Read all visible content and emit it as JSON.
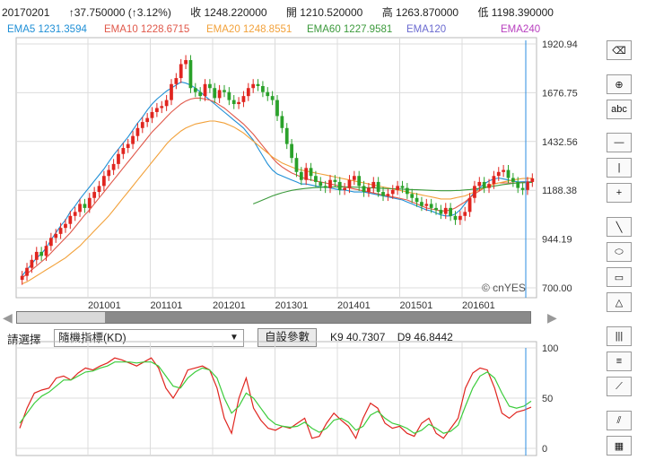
{
  "quote": {
    "date": "20170201",
    "change": "↑37.750000 (↑3.12%)",
    "close": "收 1248.220000",
    "open": "開 1210.520000",
    "high": "高 1263.870000",
    "low": "低 1198.390000"
  },
  "ema": [
    {
      "label": "EMA5 1231.3594",
      "color": "#1f8fd6"
    },
    {
      "label": "EMA10 1228.6715",
      "color": "#e0584a"
    },
    {
      "label": "EMA20 1248.8551",
      "color": "#f2a13a"
    },
    {
      "label": "EMA60 1227.9581",
      "color": "#3c9a3c"
    },
    {
      "label": "EMA120",
      "color": "#6a6ad0"
    },
    {
      "label": "EMA240",
      "color": "#b83fbf"
    }
  ],
  "controls": {
    "select_label": "請選擇",
    "select_value": "隨機指標(KD)",
    "params_button": "自設參數",
    "k_label": "K9 40.7307",
    "d_label": "D9 46.8442"
  },
  "toolbar": [
    "eraser-icon",
    "zoom-in-icon",
    "abc-text-icon",
    "horizontal-line-icon",
    "vertical-line-icon",
    "crosshair-icon",
    "trend-line-icon",
    "ellipse-icon",
    "rectangle-icon",
    "triangle-icon",
    "vertical-lines-icon",
    "horizontal-lines-icon",
    "fan-lines-icon",
    "gann-fan-icon",
    "pattern-icon"
  ],
  "colors": {
    "up": "#e0251f",
    "down": "#2aa12a",
    "k_line": "#e0251f",
    "d_line": "#3ccc3c",
    "cursor": "#2b8de0"
  },
  "watermark": "© cnYES",
  "chart_data": [
    {
      "type": "candlestick",
      "y_ticks": [
        "1920.94",
        "1676.75",
        "1432.56",
        "1188.38",
        "944.19",
        "700.00"
      ],
      "ylim": [
        700.0,
        1920.94
      ],
      "x_ticks": [
        "201001",
        "201101",
        "201201",
        "201301",
        "201401",
        "201501",
        "201601"
      ],
      "grid": true,
      "closes": [
        760,
        800,
        840,
        880,
        860,
        910,
        950,
        970,
        1000,
        1020,
        1060,
        1080,
        1120,
        1100,
        1150,
        1180,
        1210,
        1260,
        1290,
        1320,
        1370,
        1400,
        1420,
        1460,
        1500,
        1530,
        1550,
        1580,
        1600,
        1610,
        1640,
        1720,
        1750,
        1820,
        1840,
        1700,
        1680,
        1660,
        1720,
        1700,
        1650,
        1690,
        1680,
        1640,
        1620,
        1630,
        1660,
        1700,
        1720,
        1710,
        1680,
        1660,
        1640,
        1560,
        1500,
        1420,
        1350,
        1280,
        1240,
        1300,
        1260,
        1230,
        1210,
        1200,
        1240,
        1230,
        1190,
        1200,
        1240,
        1260,
        1210,
        1180,
        1200,
        1230,
        1180,
        1160,
        1170,
        1190,
        1210,
        1200,
        1170,
        1150,
        1130,
        1110,
        1120,
        1100,
        1090,
        1070,
        1100,
        1060,
        1040,
        1060,
        1080,
        1150,
        1210,
        1230,
        1200,
        1220,
        1260,
        1280,
        1290,
        1250,
        1230,
        1200,
        1190,
        1230,
        1248
      ],
      "ema_lines": [
        {
          "name": "EMA5",
          "values": [
            760,
            790,
            820,
            850,
            870,
            900,
            940,
            975,
            1010,
            1040,
            1080,
            1110,
            1145,
            1175,
            1205,
            1235,
            1265,
            1295,
            1330,
            1365,
            1395,
            1425,
            1455,
            1490,
            1525,
            1555,
            1590,
            1620,
            1645,
            1665,
            1685,
            1700,
            1715,
            1730,
            1725,
            1715,
            1700,
            1680,
            1660,
            1640,
            1620,
            1600,
            1580,
            1560,
            1540,
            1520,
            1500,
            1470,
            1440,
            1400,
            1360,
            1320,
            1290,
            1270,
            1260,
            1250,
            1240,
            1230,
            1220,
            1220,
            1215,
            1210,
            1205,
            1205,
            1200,
            1195,
            1190,
            1190,
            1185,
            1180,
            1180,
            1180,
            1175,
            1170,
            1165,
            1160,
            1155,
            1150,
            1145,
            1140,
            1130,
            1120,
            1110,
            1100,
            1090,
            1085,
            1075,
            1065,
            1060,
            1060,
            1070,
            1090,
            1120,
            1150,
            1180,
            1200,
            1220,
            1235,
            1245,
            1250,
            1245,
            1240,
            1235,
            1230,
            1231,
            1231,
            1231
          ]
        },
        {
          "name": "EMA10",
          "values": [
            750,
            770,
            790,
            810,
            830,
            850,
            875,
            900,
            925,
            950,
            975,
            1005,
            1035,
            1065,
            1090,
            1120,
            1150,
            1180,
            1210,
            1240,
            1270,
            1300,
            1330,
            1360,
            1390,
            1420,
            1450,
            1480,
            1505,
            1530,
            1555,
            1580,
            1600,
            1620,
            1635,
            1645,
            1650,
            1650,
            1645,
            1640,
            1630,
            1615,
            1600,
            1580,
            1560,
            1540,
            1520,
            1495,
            1470,
            1440,
            1410,
            1380,
            1350,
            1325,
            1305,
            1290,
            1275,
            1265,
            1255,
            1245,
            1240,
            1235,
            1230,
            1225,
            1220,
            1215,
            1210,
            1205,
            1200,
            1195,
            1190,
            1185,
            1180,
            1175,
            1170,
            1165,
            1160,
            1155,
            1150,
            1145,
            1140,
            1130,
            1120,
            1110,
            1100,
            1095,
            1090,
            1085,
            1085,
            1090,
            1100,
            1115,
            1130,
            1150,
            1170,
            1185,
            1200,
            1210,
            1220,
            1225,
            1225,
            1225,
            1225,
            1225,
            1228,
            1229,
            1229
          ]
        },
        {
          "name": "EMA20",
          "values": [
            720,
            730,
            745,
            760,
            775,
            790,
            805,
            820,
            835,
            850,
            870,
            890,
            910,
            935,
            960,
            985,
            1010,
            1035,
            1060,
            1090,
            1120,
            1150,
            1180,
            1210,
            1240,
            1270,
            1300,
            1330,
            1360,
            1390,
            1420,
            1445,
            1465,
            1485,
            1500,
            1510,
            1520,
            1525,
            1530,
            1535,
            1535,
            1530,
            1525,
            1515,
            1505,
            1490,
            1475,
            1455,
            1435,
            1415,
            1395,
            1375,
            1355,
            1340,
            1325,
            1315,
            1305,
            1295,
            1290,
            1285,
            1280,
            1275,
            1270,
            1265,
            1260,
            1255,
            1250,
            1245,
            1240,
            1235,
            1230,
            1225,
            1220,
            1215,
            1210,
            1205,
            1200,
            1195,
            1190,
            1185,
            1180,
            1175,
            1170,
            1165,
            1160,
            1155,
            1150,
            1145,
            1145,
            1145,
            1150,
            1155,
            1160,
            1170,
            1180,
            1190,
            1200,
            1210,
            1220,
            1225,
            1230,
            1235,
            1240,
            1244,
            1247,
            1248,
            1249
          ]
        },
        {
          "name": "EMA60",
          "start": 48,
          "values": [
            1120,
            1130,
            1140,
            1150,
            1160,
            1168,
            1176,
            1182,
            1188,
            1192,
            1195,
            1198,
            1200,
            1202,
            1203,
            1204,
            1205,
            1205,
            1205,
            1205,
            1205,
            1204,
            1203,
            1202,
            1201,
            1200,
            1199,
            1198,
            1197,
            1196,
            1195,
            1194,
            1193,
            1192,
            1191,
            1190,
            1189,
            1188,
            1187,
            1186,
            1186,
            1186,
            1187,
            1188,
            1190,
            1192,
            1195,
            1198,
            1201,
            1205,
            1209,
            1213,
            1217,
            1220,
            1223,
            1225,
            1226,
            1227,
            1228
          ]
        }
      ]
    },
    {
      "type": "line",
      "yticks": [
        "100",
        "50",
        "0"
      ],
      "ylim": [
        0,
        100
      ],
      "series": [
        {
          "name": "K9",
          "values": [
            20,
            40,
            55,
            58,
            60,
            70,
            72,
            68,
            75,
            80,
            78,
            82,
            85,
            90,
            88,
            85,
            82,
            86,
            90,
            80,
            60,
            50,
            62,
            78,
            80,
            82,
            78,
            60,
            30,
            15,
            50,
            70,
            40,
            28,
            20,
            18,
            22,
            20,
            25,
            30,
            10,
            12,
            25,
            35,
            28,
            22,
            10,
            30,
            45,
            40,
            25,
            20,
            22,
            15,
            12,
            25,
            30,
            15,
            10,
            20,
            30,
            60,
            75,
            80,
            78,
            60,
            35,
            30,
            36,
            38,
            41
          ]
        },
        {
          "name": "D9",
          "values": [
            25,
            35,
            45,
            52,
            56,
            62,
            68,
            68,
            72,
            76,
            77,
            80,
            82,
            86,
            86,
            86,
            85,
            86,
            86,
            82,
            72,
            62,
            60,
            70,
            76,
            80,
            78,
            70,
            50,
            35,
            42,
            55,
            50,
            40,
            30,
            24,
            22,
            21,
            22,
            26,
            20,
            16,
            20,
            28,
            30,
            26,
            18,
            22,
            33,
            37,
            30,
            25,
            23,
            20,
            15,
            18,
            24,
            20,
            15,
            17,
            23,
            42,
            60,
            72,
            76,
            70,
            55,
            42,
            40,
            42,
            47
          ]
        }
      ]
    }
  ]
}
